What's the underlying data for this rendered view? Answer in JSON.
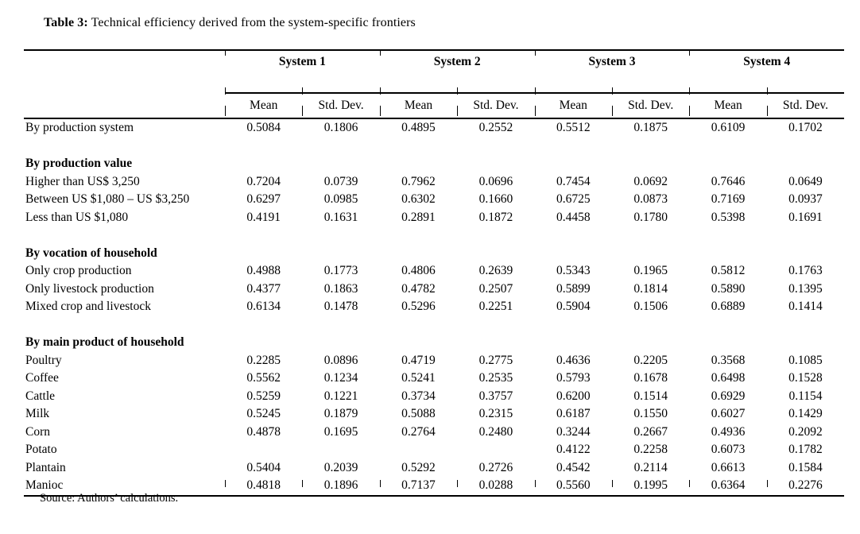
{
  "title": {
    "label": "Table 3:",
    "text": "Technical efficiency derived from the system-specific frontiers"
  },
  "table": {
    "groups": [
      "System 1",
      "System 2",
      "System 3",
      "System 4"
    ],
    "subheaders": [
      "Mean",
      "Std. Dev."
    ],
    "rows": [
      {
        "type": "data",
        "label": "By production system",
        "values": [
          "0.5084",
          "0.1806",
          "0.4895",
          "0.2552",
          "0.5512",
          "0.1875",
          "0.6109",
          "0.1702"
        ]
      },
      {
        "type": "spacer"
      },
      {
        "type": "section",
        "label": "By production value"
      },
      {
        "type": "data",
        "label": "Higher than US$ 3,250",
        "values": [
          "0.7204",
          "0.0739",
          "0.7962",
          "0.0696",
          "0.7454",
          "0.0692",
          "0.7646",
          "0.0649"
        ]
      },
      {
        "type": "data",
        "label": "Between US $1,080 – US $3,250",
        "values": [
          "0.6297",
          "0.0985",
          "0.6302",
          "0.1660",
          "0.6725",
          "0.0873",
          "0.7169",
          "0.0937"
        ]
      },
      {
        "type": "data",
        "label": "Less than US $1,080",
        "values": [
          "0.4191",
          "0.1631",
          "0.2891",
          "0.1872",
          "0.4458",
          "0.1780",
          "0.5398",
          "0.1691"
        ]
      },
      {
        "type": "spacer"
      },
      {
        "type": "section",
        "label": "By vocation of household"
      },
      {
        "type": "data",
        "label": "Only crop production",
        "values": [
          "0.4988",
          "0.1773",
          "0.4806",
          "0.2639",
          "0.5343",
          "0.1965",
          "0.5812",
          "0.1763"
        ]
      },
      {
        "type": "data",
        "label": "Only livestock production",
        "values": [
          "0.4377",
          "0.1863",
          "0.4782",
          "0.2507",
          "0.5899",
          "0.1814",
          "0.5890",
          "0.1395"
        ]
      },
      {
        "type": "data",
        "label": "Mixed crop and livestock",
        "values": [
          "0.6134",
          "0.1478",
          "0.5296",
          "0.2251",
          "0.5904",
          "0.1506",
          "0.6889",
          "0.1414"
        ]
      },
      {
        "type": "spacer"
      },
      {
        "type": "section",
        "label": "By main product of household"
      },
      {
        "type": "data",
        "label": "Poultry",
        "values": [
          "0.2285",
          "0.0896",
          "0.4719",
          "0.2775",
          "0.4636",
          "0.2205",
          "0.3568",
          "0.1085"
        ]
      },
      {
        "type": "data",
        "label": "Coffee",
        "values": [
          "0.5562",
          "0.1234",
          "0.5241",
          "0.2535",
          "0.5793",
          "0.1678",
          "0.6498",
          "0.1528"
        ]
      },
      {
        "type": "data",
        "label": "Cattle",
        "values": [
          "0.5259",
          "0.1221",
          "0.3734",
          "0.3757",
          "0.6200",
          "0.1514",
          "0.6929",
          "0.1154"
        ]
      },
      {
        "type": "data",
        "label": "Milk",
        "values": [
          "0.5245",
          "0.1879",
          "0.5088",
          "0.2315",
          "0.6187",
          "0.1550",
          "0.6027",
          "0.1429"
        ]
      },
      {
        "type": "data",
        "label": "Corn",
        "values": [
          "0.4878",
          "0.1695",
          "0.2764",
          "0.2480",
          "0.3244",
          "0.2667",
          "0.4936",
          "0.2092"
        ]
      },
      {
        "type": "data",
        "label": "Potato",
        "values": [
          "",
          "",
          "",
          "",
          "0.4122",
          "0.2258",
          "0.6073",
          "0.1782"
        ]
      },
      {
        "type": "data",
        "label": "Plantain",
        "values": [
          "0.5404",
          "0.2039",
          "0.5292",
          "0.2726",
          "0.4542",
          "0.2114",
          "0.6613",
          "0.1584"
        ]
      },
      {
        "type": "data",
        "label": "Manioc",
        "values": [
          "0.4818",
          "0.1896",
          "0.7137",
          "0.0288",
          "0.5560",
          "0.1995",
          "0.6364",
          "0.2276"
        ]
      }
    ]
  },
  "source": "Source: Authors’ calculations.",
  "colors": {
    "text": "#000000",
    "background": "#ffffff",
    "rule": "#000000"
  }
}
